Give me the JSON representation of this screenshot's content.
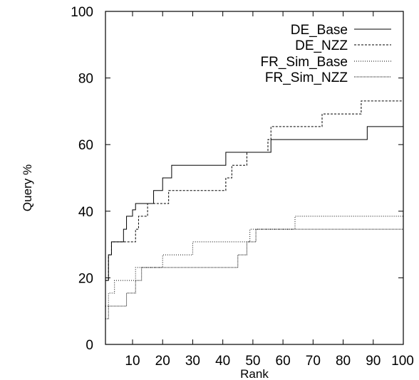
{
  "chart_data": {
    "type": "line",
    "title": "",
    "xlabel": "Rank",
    "ylabel": "Query %",
    "xlim": [
      1,
      100
    ],
    "ylim": [
      0,
      100
    ],
    "xticks": [
      "10",
      "20",
      "30",
      "40",
      "50",
      "60",
      "70",
      "80",
      "90",
      "100"
    ],
    "yticks": [
      "0",
      "20",
      "40",
      "60",
      "80",
      "100"
    ],
    "grid": false,
    "legend_position": "top-right",
    "step": true,
    "series": [
      {
        "name": "DE_Base",
        "dash": "",
        "x": [
          1,
          2,
          3,
          7,
          8,
          10,
          11,
          12,
          17,
          18,
          20,
          23,
          41,
          56,
          88
        ],
        "y": [
          19.2,
          26.9,
          30.8,
          34.6,
          38.5,
          40.4,
          42.3,
          42.3,
          46.2,
          46.2,
          50.0,
          53.8,
          57.7,
          61.5,
          65.4
        ]
      },
      {
        "name": "DE_NZZ",
        "dash": "3,2",
        "x": [
          1,
          2,
          3,
          11,
          12,
          13,
          15,
          16,
          22,
          40,
          41,
          43,
          48,
          55,
          56,
          73,
          86
        ],
        "y": [
          19.2,
          26.9,
          30.8,
          34.6,
          38.5,
          38.5,
          42.3,
          42.3,
          46.2,
          46.2,
          50.0,
          53.8,
          57.7,
          61.5,
          65.4,
          69.2,
          73.1
        ]
      },
      {
        "name": "FR_Sim_Base",
        "dash": "1,2",
        "x": [
          1,
          2,
          4,
          10,
          11,
          13,
          20,
          30,
          49,
          58,
          64
        ],
        "y": [
          11.5,
          15.4,
          19.2,
          19.2,
          23.1,
          23.1,
          26.9,
          30.8,
          34.6,
          34.6,
          38.5
        ]
      },
      {
        "name": "FR_Sim_NZZ",
        "dash": "1,1",
        "x": [
          1,
          2,
          5,
          8,
          11,
          12,
          13,
          19,
          45,
          46,
          48,
          51,
          56,
          63,
          65
        ],
        "y": [
          7.7,
          11.5,
          11.5,
          15.4,
          19.2,
          19.2,
          23.1,
          23.1,
          26.9,
          26.9,
          30.8,
          34.6,
          34.6,
          34.6,
          34.6
        ]
      }
    ]
  }
}
